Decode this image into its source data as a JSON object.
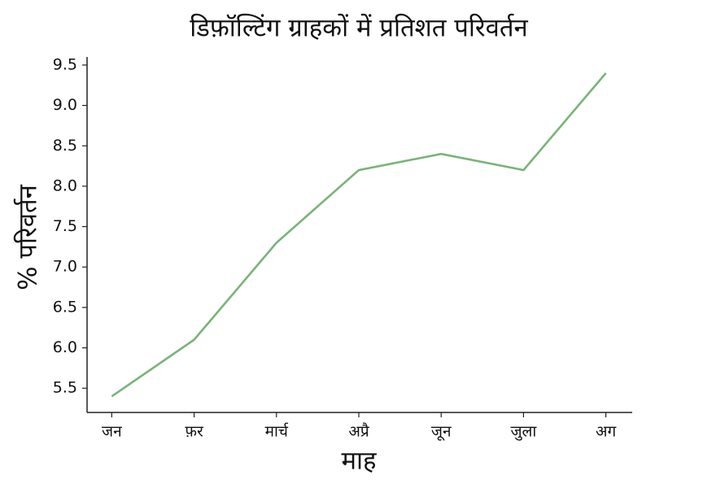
{
  "chart_data": {
    "type": "line",
    "title": "डिफ़ॉल्टिंग ग्राहकों में प्रतिशत परिवर्तन",
    "x_label": "माह",
    "y_label": "% परिवर्तन",
    "categories": [
      "जन",
      "फ़र",
      "मार्च",
      "अप्रै",
      "जून",
      "जुला",
      "अग"
    ],
    "series": [
      {
        "name": "% परिवर्तन",
        "color": "#78b478",
        "values": [
          5.4,
          6.1,
          7.3,
          8.2,
          8.4,
          8.2,
          9.4
        ]
      }
    ],
    "ylim": [
      5.2,
      9.6
    ],
    "yticks": [
      5.5,
      {
        "value": 6,
        "label": "6.0"
      },
      6.5,
      {
        "value": 7,
        "label": "7.0"
      },
      7.5,
      {
        "value": 8,
        "label": "8.0"
      },
      8.5,
      {
        "value": 9,
        "label": "9.0"
      },
      9.5
    ],
    "grid": false
  }
}
